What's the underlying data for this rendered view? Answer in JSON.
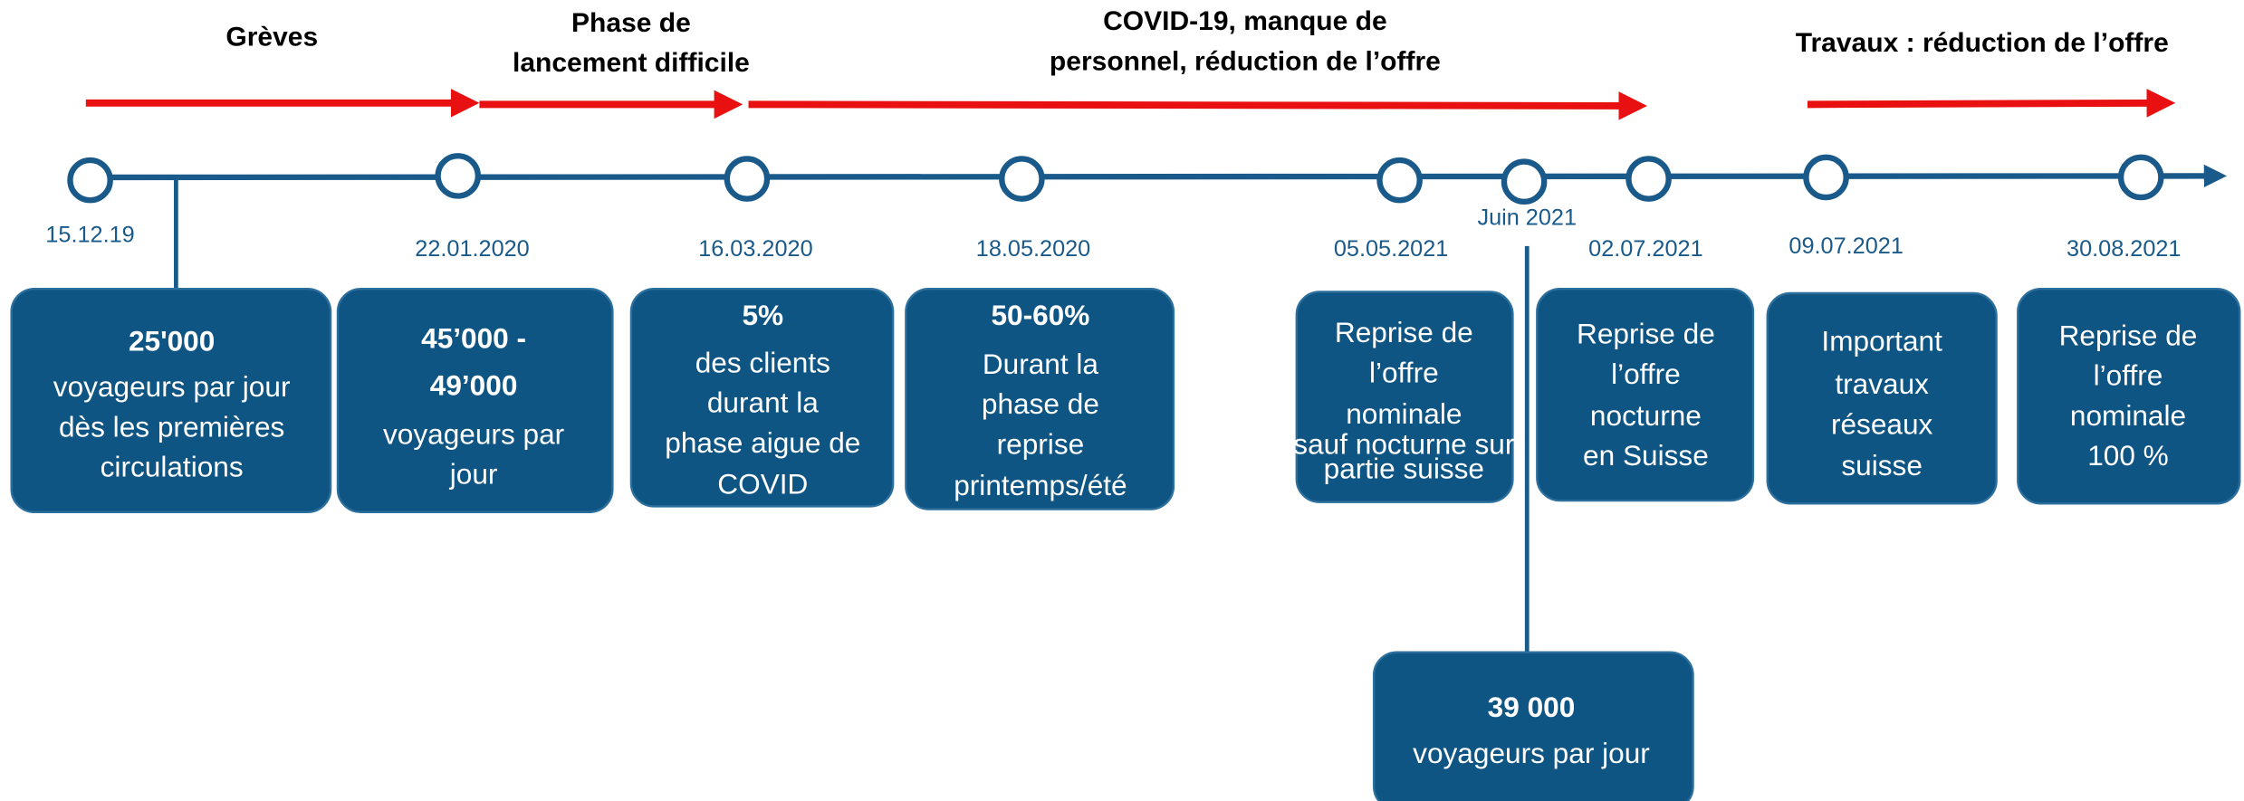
{
  "periods": [
    {
      "lines": [
        "Grèves"
      ]
    },
    {
      "lines": [
        "Phase de",
        "lancement difficile"
      ]
    },
    {
      "lines": [
        "COVID-19, manque de",
        "personnel, réduction de l’offre"
      ]
    },
    {
      "lines": [
        "Travaux : réduction de l’offre"
      ]
    }
  ],
  "milestones": [
    {
      "date": "15.12.19"
    },
    {
      "date": "22.01.2020"
    },
    {
      "date": "16.03.2020"
    },
    {
      "date": "18.05.2020"
    },
    {
      "date": "05.05.2021"
    },
    {
      "date": "Juin 2021"
    },
    {
      "date": "02.07.2021"
    },
    {
      "date": "09.07.2021"
    },
    {
      "date": "30.08.2021"
    }
  ],
  "boxes": [
    {
      "lines": [
        "25'000",
        "voyageurs par jour",
        "dès les premières",
        "circulations"
      ]
    },
    {
      "lines": [
        "45’000 -",
        "49’000",
        "voyageurs par",
        "jour"
      ]
    },
    {
      "lines": [
        "5%",
        "des clients",
        "durant la",
        "phase aigue de",
        "COVID"
      ]
    },
    {
      "lines": [
        "50-60%",
        "Durant la",
        "phase de",
        "reprise",
        "printemps/été"
      ]
    },
    {
      "lines": [
        "Reprise de",
        "l’offre",
        "nominale",
        "sauf nocturne sur",
        "partie suisse"
      ]
    },
    {
      "lines": [
        "Reprise de",
        "l’offre",
        "nocturne",
        "en Suisse"
      ]
    },
    {
      "lines": [
        "Important",
        "travaux",
        "réseaux",
        "suisse"
      ]
    },
    {
      "lines": [
        "Reprise de",
        "l’offre",
        "nominale",
        "100 %"
      ]
    },
    {
      "lines": [
        "39 000",
        "voyageurs par jour"
      ]
    }
  ]
}
